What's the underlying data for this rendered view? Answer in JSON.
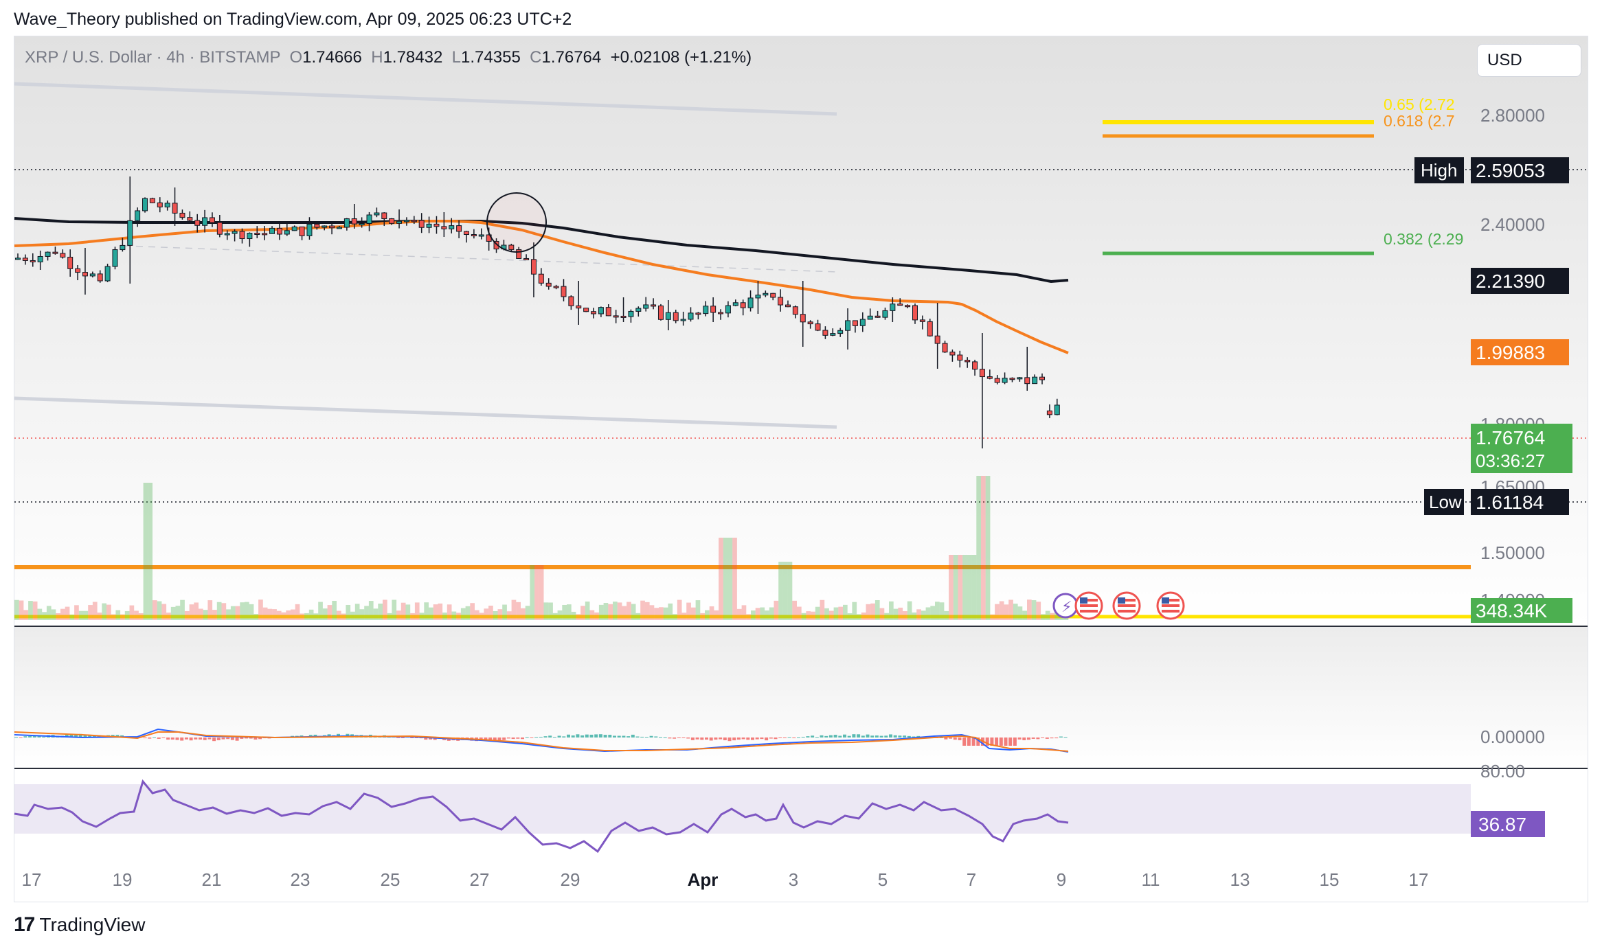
{
  "publisher_line": "Wave_Theory published on TradingView.com, Apr 09, 2025 06:23 UTC+2",
  "header": {
    "symbol": "XRP / U.S. Dollar · 4h · BITSTAMP",
    "o_label": "O",
    "o": "1.74666",
    "h_label": "H",
    "h": "1.78432",
    "l_label": "L",
    "l": "1.74355",
    "c_label": "C",
    "c": "1.76764",
    "change": "+0.02108 (+1.21%)"
  },
  "currency": "USD",
  "footer": {
    "brand": "TradingView",
    "logo_mark": "17"
  },
  "colors": {
    "background_top": "#e1e1e1",
    "background_bottom": "#ffffff",
    "ema_long": "#131722",
    "ema_short": "#f57c1f",
    "candle_up": "#26a69a",
    "candle_down": "#ef5350",
    "fib_0618": "#f7931a",
    "fib_065": "#ffe500",
    "fib_0382": "#4caf50",
    "rsi": "#7e57c2",
    "price_label": "#4caf50",
    "channel": "#d1d4dc"
  },
  "price_axis": {
    "ticks": [
      "2.80000",
      "2.40000",
      "1.80000",
      "1.65000",
      "1.50000",
      "1.40000"
    ],
    "high": {
      "label": "High",
      "value": "2.59053"
    },
    "low": {
      "label": "Low",
      "value": "1.61184"
    },
    "ema_long_value": "2.21390",
    "ema_short_value": "1.99883",
    "last_price": "1.76764",
    "countdown": "03:36:27",
    "volume": "348.34K",
    "macd_zero": "0.00000",
    "rsi_top": "80.00",
    "rsi_value": "36.87"
  },
  "fib_levels": [
    {
      "label": "0.65 (2.72",
      "value": 2.72
    },
    {
      "label": "0.618 (2.7",
      "value": 2.7
    },
    {
      "label": "0.382 (2.29",
      "value": 2.29
    }
  ],
  "time_axis": [
    "17",
    "19",
    "21",
    "23",
    "25",
    "27",
    "29",
    "Apr",
    "3",
    "5",
    "7",
    "9",
    "11",
    "13",
    "15",
    "17"
  ],
  "chart_data": {
    "type": "candlestick",
    "symbol": "XRP / U.S. Dollar",
    "timeframe": "4h",
    "exchange": "BITSTAMP",
    "ylim": [
      1.38,
      2.95
    ],
    "ohlc_daily_approx": [
      {
        "d": "Mar 17",
        "o": 2.3,
        "h": 2.33,
        "l": 2.26,
        "c": 2.32
      },
      {
        "d": "Mar 18",
        "o": 2.32,
        "h": 2.34,
        "l": 2.17,
        "c": 2.22
      },
      {
        "d": "Mar 19",
        "o": 2.22,
        "h": 2.6,
        "l": 2.21,
        "c": 2.52
      },
      {
        "d": "Mar 20",
        "o": 2.52,
        "h": 2.56,
        "l": 2.42,
        "c": 2.44
      },
      {
        "d": "Mar 21",
        "o": 2.44,
        "h": 2.46,
        "l": 2.38,
        "c": 2.4
      },
      {
        "d": "Mar 22",
        "o": 2.4,
        "h": 2.42,
        "l": 2.37,
        "c": 2.39
      },
      {
        "d": "Mar 23",
        "o": 2.39,
        "h": 2.43,
        "l": 2.37,
        "c": 2.42
      },
      {
        "d": "Mar 24",
        "o": 2.42,
        "h": 2.5,
        "l": 2.41,
        "c": 2.46
      },
      {
        "d": "Mar 25",
        "o": 2.46,
        "h": 2.48,
        "l": 2.42,
        "c": 2.44
      },
      {
        "d": "Mar 26",
        "o": 2.44,
        "h": 2.47,
        "l": 2.38,
        "c": 2.4
      },
      {
        "d": "Mar 27",
        "o": 2.4,
        "h": 2.41,
        "l": 2.33,
        "c": 2.35
      },
      {
        "d": "Mar 28",
        "o": 2.35,
        "h": 2.36,
        "l": 2.16,
        "c": 2.2
      },
      {
        "d": "Mar 29",
        "o": 2.2,
        "h": 2.22,
        "l": 2.06,
        "c": 2.1
      },
      {
        "d": "Mar 30",
        "o": 2.1,
        "h": 2.16,
        "l": 2.07,
        "c": 2.12
      },
      {
        "d": "Mar 31",
        "o": 2.12,
        "h": 2.15,
        "l": 2.04,
        "c": 2.08
      },
      {
        "d": "Apr 1",
        "o": 2.08,
        "h": 2.16,
        "l": 2.07,
        "c": 2.13
      },
      {
        "d": "Apr 2",
        "o": 2.13,
        "h": 2.22,
        "l": 2.1,
        "c": 2.16
      },
      {
        "d": "Apr 3",
        "o": 2.16,
        "h": 2.22,
        "l": 1.98,
        "c": 2.04
      },
      {
        "d": "Apr 4",
        "o": 2.04,
        "h": 2.12,
        "l": 1.97,
        "c": 2.08
      },
      {
        "d": "Apr 5",
        "o": 2.08,
        "h": 2.16,
        "l": 2.07,
        "c": 2.13
      },
      {
        "d": "Apr 6",
        "o": 2.13,
        "h": 2.14,
        "l": 1.9,
        "c": 1.95
      },
      {
        "d": "Apr 7",
        "o": 1.95,
        "h": 2.03,
        "l": 1.61,
        "c": 1.85
      },
      {
        "d": "Apr 8",
        "o": 1.85,
        "h": 1.98,
        "l": 1.82,
        "c": 1.86
      },
      {
        "d": "Apr 9",
        "o": 1.74666,
        "h": 1.78432,
        "l": 1.74355,
        "c": 1.76764
      }
    ],
    "ema_long_current": 2.2139,
    "ema_short_current": 1.99883,
    "high": 2.59053,
    "low": 1.61184,
    "last": 1.76764,
    "volume_last": "348.34K",
    "rsi_last": 36.87,
    "macd_zero_line": 0.0
  }
}
